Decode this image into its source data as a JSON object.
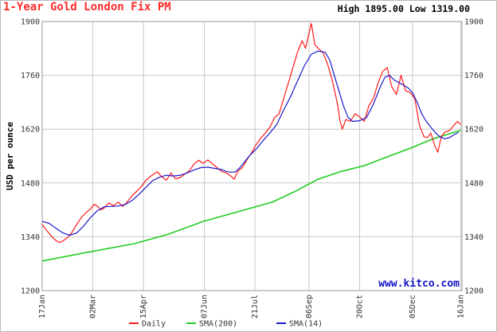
{
  "header": {
    "title": "1-Year Gold London Fix PM",
    "high_label": "High",
    "high_value": "1895.00",
    "low_label": "Low",
    "low_value": "1319.00"
  },
  "watermark": "www.kitco.com",
  "colors": {
    "title": "#ff2a2a",
    "daily": "#ff1a1a",
    "sma200": "#22cc22",
    "sma14": "#1a1acc",
    "grid": "#c8c8c8",
    "watermark": "#1414c8"
  },
  "chart_data": {
    "type": "line",
    "title": "1-Year Gold London Fix PM",
    "ylabel": "USD per ounce",
    "xlabel": "",
    "ylim": [
      1200,
      1900
    ],
    "yticks": [
      1200,
      1340,
      1480,
      1620,
      1760,
      1900
    ],
    "xlim": [
      0,
      365
    ],
    "x_ticks": [
      {
        "label": "17Jan",
        "day": 0
      },
      {
        "label": "02Mar",
        "day": 44
      },
      {
        "label": "15Apr",
        "day": 88
      },
      {
        "label": "07Jun",
        "day": 141
      },
      {
        "label": "21Jul",
        "day": 185
      },
      {
        "label": "06Sep",
        "day": 232
      },
      {
        "label": "20Oct",
        "day": 276
      },
      {
        "label": "05Dec",
        "day": 322
      },
      {
        "label": "16Jan",
        "day": 364
      }
    ],
    "grid": true,
    "legend_position": "bottom",
    "series": [
      {
        "name": "Daily",
        "color": "#ff1a1a",
        "points": [
          [
            0,
            1372
          ],
          [
            3,
            1360
          ],
          [
            6,
            1349
          ],
          [
            9,
            1338
          ],
          [
            12,
            1330
          ],
          [
            15,
            1325
          ],
          [
            18,
            1329
          ],
          [
            22,
            1338
          ],
          [
            26,
            1352
          ],
          [
            30,
            1372
          ],
          [
            34,
            1390
          ],
          [
            38,
            1403
          ],
          [
            42,
            1412
          ],
          [
            45,
            1424
          ],
          [
            48,
            1420
          ],
          [
            51,
            1410
          ],
          [
            54,
            1415
          ],
          [
            58,
            1428
          ],
          [
            62,
            1421
          ],
          [
            66,
            1430
          ],
          [
            70,
            1419
          ],
          [
            74,
            1431
          ],
          [
            78,
            1446
          ],
          [
            82,
            1458
          ],
          [
            86,
            1470
          ],
          [
            90,
            1486
          ],
          [
            94,
            1497
          ],
          [
            97,
            1503
          ],
          [
            100,
            1509
          ],
          [
            104,
            1496
          ],
          [
            108,
            1487
          ],
          [
            112,
            1506
          ],
          [
            116,
            1491
          ],
          [
            120,
            1494
          ],
          [
            124,
            1503
          ],
          [
            128,
            1512
          ],
          [
            132,
            1529
          ],
          [
            136,
            1539
          ],
          [
            140,
            1531
          ],
          [
            144,
            1540
          ],
          [
            148,
            1530
          ],
          [
            152,
            1520
          ],
          [
            156,
            1510
          ],
          [
            160,
            1506
          ],
          [
            164,
            1498
          ],
          [
            167,
            1490
          ],
          [
            170,
            1510
          ],
          [
            174,
            1520
          ],
          [
            178,
            1540
          ],
          [
            182,
            1558
          ],
          [
            186,
            1580
          ],
          [
            190,
            1596
          ],
          [
            194,
            1610
          ],
          [
            198,
            1625
          ],
          [
            202,
            1650
          ],
          [
            206,
            1660
          ],
          [
            210,
            1700
          ],
          [
            214,
            1740
          ],
          [
            218,
            1780
          ],
          [
            222,
            1820
          ],
          [
            226,
            1850
          ],
          [
            229,
            1830
          ],
          [
            232,
            1870
          ],
          [
            234,
            1895
          ],
          [
            237,
            1840
          ],
          [
            240,
            1830
          ],
          [
            244,
            1820
          ],
          [
            248,
            1790
          ],
          [
            252,
            1750
          ],
          [
            255,
            1710
          ],
          [
            257,
            1680
          ],
          [
            259,
            1640
          ],
          [
            261,
            1620
          ],
          [
            264,
            1645
          ],
          [
            268,
            1640
          ],
          [
            272,
            1660
          ],
          [
            276,
            1652
          ],
          [
            280,
            1640
          ],
          [
            284,
            1680
          ],
          [
            288,
            1700
          ],
          [
            292,
            1740
          ],
          [
            296,
            1770
          ],
          [
            300,
            1780
          ],
          [
            304,
            1730
          ],
          [
            308,
            1710
          ],
          [
            312,
            1760
          ],
          [
            316,
            1720
          ],
          [
            320,
            1715
          ],
          [
            324,
            1700
          ],
          [
            328,
            1630
          ],
          [
            332,
            1600
          ],
          [
            335,
            1598
          ],
          [
            338,
            1610
          ],
          [
            341,
            1580
          ],
          [
            344,
            1560
          ],
          [
            347,
            1600
          ],
          [
            350,
            1612
          ],
          [
            354,
            1616
          ],
          [
            358,
            1630
          ],
          [
            361,
            1640
          ],
          [
            364,
            1632
          ]
        ]
      },
      {
        "name": "SMA(200)",
        "color": "#22cc22",
        "points": [
          [
            0,
            1277
          ],
          [
            40,
            1300
          ],
          [
            80,
            1322
          ],
          [
            110,
            1347
          ],
          [
            140,
            1380
          ],
          [
            170,
            1405
          ],
          [
            200,
            1430
          ],
          [
            220,
            1458
          ],
          [
            240,
            1490
          ],
          [
            260,
            1510
          ],
          [
            280,
            1525
          ],
          [
            300,
            1548
          ],
          [
            320,
            1570
          ],
          [
            340,
            1595
          ],
          [
            355,
            1609
          ],
          [
            364,
            1617
          ]
        ]
      },
      {
        "name": "SMA(14)",
        "color": "#1a1acc",
        "points": [
          [
            0,
            1380
          ],
          [
            6,
            1375
          ],
          [
            12,
            1362
          ],
          [
            18,
            1350
          ],
          [
            24,
            1344
          ],
          [
            30,
            1350
          ],
          [
            36,
            1368
          ],
          [
            42,
            1390
          ],
          [
            48,
            1408
          ],
          [
            54,
            1418
          ],
          [
            60,
            1419
          ],
          [
            66,
            1420
          ],
          [
            72,
            1424
          ],
          [
            78,
            1434
          ],
          [
            84,
            1450
          ],
          [
            90,
            1468
          ],
          [
            96,
            1486
          ],
          [
            102,
            1495
          ],
          [
            108,
            1500
          ],
          [
            114,
            1498
          ],
          [
            120,
            1500
          ],
          [
            126,
            1506
          ],
          [
            132,
            1514
          ],
          [
            138,
            1520
          ],
          [
            144,
            1521
          ],
          [
            150,
            1518
          ],
          [
            156,
            1515
          ],
          [
            160,
            1510
          ],
          [
            164,
            1508
          ],
          [
            168,
            1509
          ],
          [
            172,
            1520
          ],
          [
            176,
            1535
          ],
          [
            180,
            1550
          ],
          [
            186,
            1568
          ],
          [
            192,
            1590
          ],
          [
            198,
            1610
          ],
          [
            204,
            1632
          ],
          [
            210,
            1670
          ],
          [
            216,
            1705
          ],
          [
            222,
            1745
          ],
          [
            228,
            1785
          ],
          [
            234,
            1815
          ],
          [
            240,
            1823
          ],
          [
            246,
            1820
          ],
          [
            250,
            1800
          ],
          [
            254,
            1760
          ],
          [
            258,
            1720
          ],
          [
            262,
            1680
          ],
          [
            266,
            1650
          ],
          [
            270,
            1640
          ],
          [
            276,
            1642
          ],
          [
            282,
            1650
          ],
          [
            288,
            1685
          ],
          [
            294,
            1730
          ],
          [
            298,
            1755
          ],
          [
            302,
            1760
          ],
          [
            306,
            1748
          ],
          [
            312,
            1738
          ],
          [
            318,
            1728
          ],
          [
            322,
            1715
          ],
          [
            326,
            1690
          ],
          [
            330,
            1660
          ],
          [
            334,
            1640
          ],
          [
            338,
            1625
          ],
          [
            342,
            1610
          ],
          [
            346,
            1600
          ],
          [
            350,
            1595
          ],
          [
            354,
            1598
          ],
          [
            358,
            1605
          ],
          [
            362,
            1612
          ]
        ]
      }
    ]
  }
}
